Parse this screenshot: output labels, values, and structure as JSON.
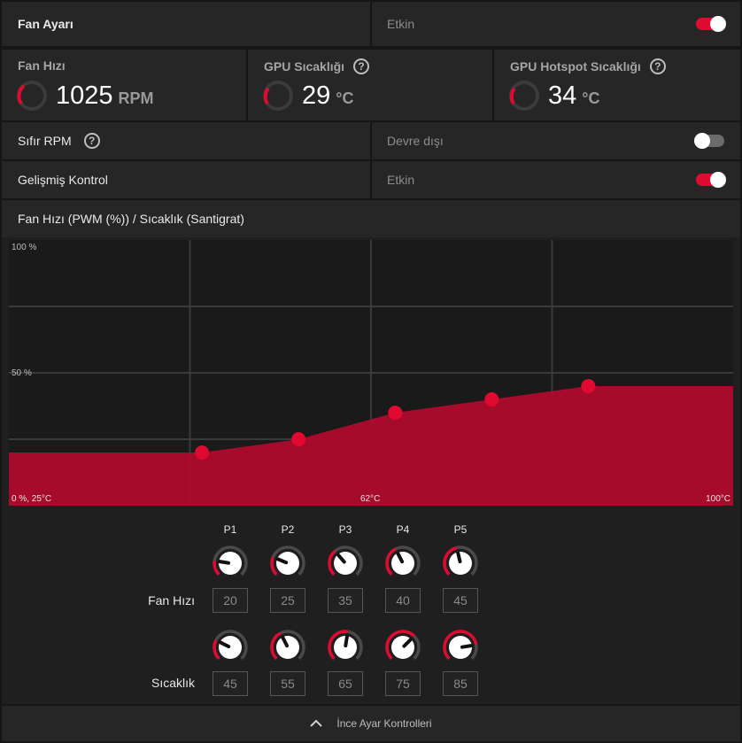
{
  "header": {
    "title": "Fan Ayarı",
    "value": "Etkin",
    "toggle_on": true
  },
  "metrics": [
    {
      "title": "Fan Hızı",
      "value": "1025",
      "unit": "RPM",
      "help": false
    },
    {
      "title": "GPU Sıcaklığı",
      "value": "29",
      "unit": "°C",
      "help": true
    },
    {
      "title": "GPU Hotspot Sıcaklığı",
      "value": "34",
      "unit": "°C",
      "help": true
    }
  ],
  "zero_rpm": {
    "label": "Sıfır RPM",
    "value": "Devre dışı",
    "toggle_on": false
  },
  "advanced": {
    "label": "Gelişmiş Kontrol",
    "value": "Etkin",
    "toggle_on": true
  },
  "chart_title": "Fan Hızı (PWM (%)) / Sıcaklık (Santigrat)",
  "chart_data": {
    "type": "area",
    "ylabels": {
      "top": "100 %",
      "mid": "50 %",
      "bottom": "0 %, 25°C"
    },
    "xlabels": {
      "mid": "62°C",
      "right": "100°C"
    },
    "points": [
      {
        "name": "P1",
        "temp": 45,
        "fan": 20
      },
      {
        "name": "P2",
        "temp": 55,
        "fan": 25
      },
      {
        "name": "P3",
        "temp": 65,
        "fan": 35
      },
      {
        "name": "P4",
        "temp": 75,
        "fan": 40
      },
      {
        "name": "P5",
        "temp": 85,
        "fan": 45
      }
    ],
    "xlim": [
      25,
      100
    ],
    "ylim": [
      0,
      100
    ],
    "fill_color": "#b20a2c",
    "point_color": "#e0092f"
  },
  "controls": {
    "fan_label": "Fan Hızı",
    "temp_label": "Sıcaklık"
  },
  "footer": {
    "label": "İnce Ayar Kontrolleri",
    "icon": "chevron-up-icon"
  },
  "colors": {
    "accent": "#e0092f",
    "panel": "#262626",
    "bg": "#161616"
  }
}
